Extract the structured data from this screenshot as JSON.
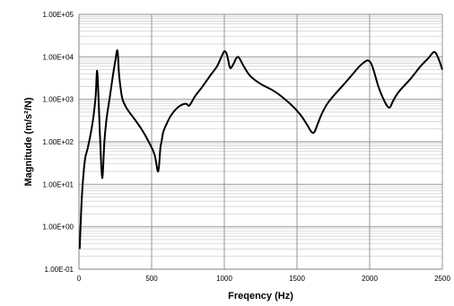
{
  "chart_data": {
    "type": "line",
    "title": "",
    "xlabel": "Freqency (Hz)",
    "ylabel": "Magnitude (m/s²/N)",
    "xlim": [
      0,
      2500
    ],
    "ylim": [
      0.1,
      100000
    ],
    "yscale": "log",
    "grid": true,
    "legend": "none",
    "x_ticks": [
      0,
      500,
      1000,
      1500,
      2000,
      2500
    ],
    "x_tick_labels": [
      "0",
      "500",
      "1000",
      "1500",
      "2000",
      "2500"
    ],
    "y_ticks": [
      0.1,
      1,
      10,
      100,
      1000,
      10000,
      100000
    ],
    "y_tick_labels": [
      "1.00E-01",
      "1.00E+00",
      "1.00E+01",
      "1.00E+02",
      "1.00E+03",
      "1.00E+04",
      "1.00E+05"
    ],
    "colors": {
      "line": "#000000",
      "grid": "#c0c0c0",
      "axis": "#808080"
    },
    "series": [
      {
        "x": [
          5,
          20,
          40,
          60,
          80,
          100,
          115,
          125,
          135,
          145,
          160,
          175,
          190,
          210,
          230,
          250,
          265,
          275,
          285,
          300,
          330,
          380,
          430,
          480,
          520,
          545,
          560,
          570,
          580,
          600,
          630,
          670,
          710,
          740,
          755,
          770,
          800,
          850,
          900,
          950,
          980,
          1000,
          1015,
          1025,
          1040,
          1060,
          1080,
          1095,
          1110,
          1140,
          1180,
          1250,
          1350,
          1450,
          1520,
          1570,
          1600,
          1620,
          1640,
          1670,
          1710,
          1760,
          1820,
          1880,
          1930,
          1970,
          1990,
          2010,
          2030,
          2060,
          2090,
          2120,
          2140,
          2160,
          2200,
          2280,
          2350,
          2400,
          2430,
          2445,
          2460,
          2480,
          2500
        ],
        "y": [
          0.3,
          5,
          35,
          70,
          150,
          400,
          1200,
          4700,
          1000,
          130,
          14,
          100,
          350,
          1000,
          3000,
          8000,
          14000,
          4200,
          2000,
          1000,
          600,
          350,
          200,
          100,
          50,
          20,
          70,
          110,
          170,
          250,
          400,
          600,
          750,
          780,
          700,
          800,
          1200,
          2000,
          3500,
          6000,
          10000,
          13500,
          12000,
          9000,
          5500,
          6500,
          9000,
          10000,
          8500,
          5500,
          3500,
          2300,
          1500,
          800,
          450,
          250,
          170,
          170,
          250,
          450,
          800,
          1300,
          2200,
          3800,
          6000,
          7800,
          8200,
          7000,
          4500,
          2000,
          1100,
          700,
          650,
          900,
          1500,
          3000,
          6000,
          9000,
          12000,
          13000,
          11500,
          8000,
          5000
        ]
      }
    ]
  }
}
